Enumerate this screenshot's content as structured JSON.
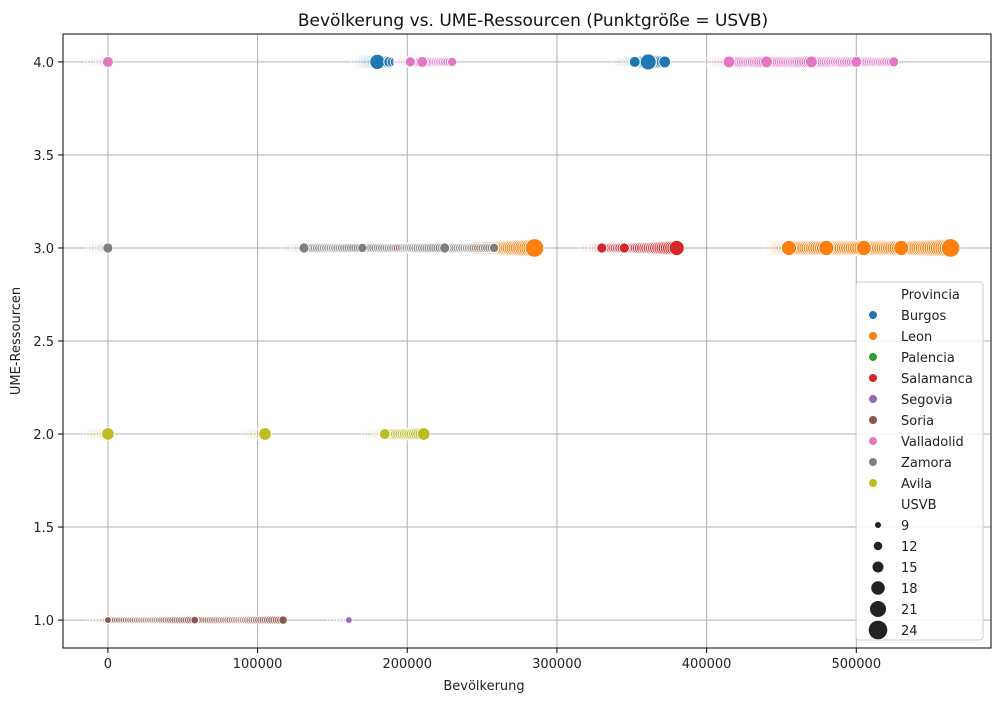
{
  "chart_data": {
    "type": "scatter",
    "title": "Bevölkerung vs. UME-Ressourcen (Punktgröße = USVB)",
    "xlabel": "Bevölkerung",
    "ylabel": "UME-Ressourcen",
    "xlim": [
      -30000,
      590000
    ],
    "ylim": [
      0.85,
      4.15
    ],
    "xticks": [
      0,
      100000,
      200000,
      300000,
      400000,
      500000
    ],
    "xtick_labels": [
      "0",
      "100000",
      "200000",
      "300000",
      "400000",
      "500000"
    ],
    "yticks": [
      1.0,
      1.5,
      2.0,
      2.5,
      3.0,
      3.5,
      4.0
    ],
    "ytick_labels": [
      "1.0",
      "1.5",
      "2.0",
      "2.5",
      "3.0",
      "3.5",
      "4.0"
    ],
    "grid": true,
    "legend": {
      "placement": "lower-right",
      "hue_title": "Provincia",
      "size_title": "USVB",
      "size_entries": [
        9,
        12,
        15,
        18,
        21,
        24
      ]
    },
    "series": [
      {
        "name": "Burgos",
        "color": "#1f77b4",
        "points": [
          {
            "x": 180000,
            "y": 4,
            "s": 20
          },
          {
            "x": 188000,
            "y": 4,
            "s": 15
          },
          {
            "x": 352000,
            "y": 4,
            "s": 15
          },
          {
            "x": 361000,
            "y": 4,
            "s": 21
          },
          {
            "x": 372000,
            "y": 4,
            "s": 16
          }
        ]
      },
      {
        "name": "Leon",
        "color": "#ff7f0e",
        "points": [
          {
            "x": 1000,
            "y": 3,
            "s": 11
          },
          {
            "x": 245000,
            "y": 3,
            "s": 16
          },
          {
            "x": 285000,
            "y": 3,
            "s": 24
          },
          {
            "x": 455000,
            "y": 3,
            "s": 20
          },
          {
            "x": 480000,
            "y": 3,
            "s": 20
          },
          {
            "x": 505000,
            "y": 3,
            "s": 20
          },
          {
            "x": 530000,
            "y": 3,
            "s": 20
          },
          {
            "x": 563000,
            "y": 3,
            "s": 24
          }
        ]
      },
      {
        "name": "Palencia",
        "color": "#2ca02c",
        "points": []
      },
      {
        "name": "Salamanca",
        "color": "#d62728",
        "points": [
          {
            "x": 1000,
            "y": 3,
            "s": 9
          },
          {
            "x": 193000,
            "y": 3,
            "s": 12
          },
          {
            "x": 330000,
            "y": 3,
            "s": 14
          },
          {
            "x": 345000,
            "y": 3,
            "s": 14
          },
          {
            "x": 380000,
            "y": 3,
            "s": 20
          }
        ]
      },
      {
        "name": "Segovia",
        "color": "#9467bd",
        "points": [
          {
            "x": 81000,
            "y": 1,
            "s": 10
          },
          {
            "x": 161000,
            "y": 1,
            "s": 10
          }
        ]
      },
      {
        "name": "Soria",
        "color": "#8c564b",
        "points": [
          {
            "x": 0,
            "y": 1,
            "s": 10
          },
          {
            "x": 58000,
            "y": 1,
            "s": 11
          },
          {
            "x": 117000,
            "y": 1,
            "s": 12
          }
        ]
      },
      {
        "name": "Valladolid",
        "color": "#e377c2",
        "points": [
          {
            "x": 0,
            "y": 4,
            "s": 15
          },
          {
            "x": 202000,
            "y": 4,
            "s": 14
          },
          {
            "x": 210000,
            "y": 4,
            "s": 15
          },
          {
            "x": 230000,
            "y": 4,
            "s": 13
          },
          {
            "x": 415000,
            "y": 4,
            "s": 16
          },
          {
            "x": 440000,
            "y": 4,
            "s": 16
          },
          {
            "x": 470000,
            "y": 4,
            "s": 16
          },
          {
            "x": 500000,
            "y": 4,
            "s": 15
          },
          {
            "x": 525000,
            "y": 4,
            "s": 14
          }
        ]
      },
      {
        "name": "Zamora",
        "color": "#7f7f7f",
        "points": [
          {
            "x": 0,
            "y": 3,
            "s": 14
          },
          {
            "x": 131000,
            "y": 3,
            "s": 14
          },
          {
            "x": 170000,
            "y": 3,
            "s": 13
          },
          {
            "x": 225000,
            "y": 3,
            "s": 14
          },
          {
            "x": 258000,
            "y": 3,
            "s": 13
          }
        ]
      },
      {
        "name": "Avila",
        "color": "#bcbd22",
        "points": [
          {
            "x": 0,
            "y": 2,
            "s": 17
          },
          {
            "x": 105000,
            "y": 2,
            "s": 17
          },
          {
            "x": 185000,
            "y": 2,
            "s": 15
          },
          {
            "x": 211000,
            "y": 2,
            "s": 17
          }
        ]
      }
    ]
  }
}
